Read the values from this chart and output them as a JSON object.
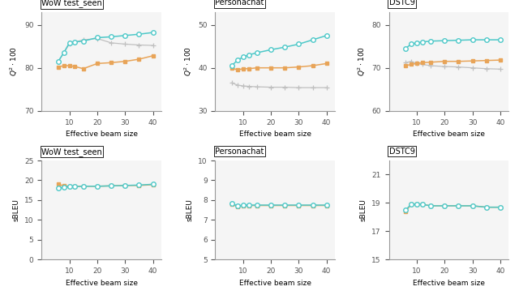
{
  "x": [
    6,
    8,
    10,
    12,
    15,
    20,
    25,
    30,
    35,
    40
  ],
  "titles_row1": [
    "WoW test_seen",
    "Personachat",
    "DSTC9"
  ],
  "titles_row2": [
    "WoW test_seen",
    "Personachat",
    "DSTC9"
  ],
  "ylabel_row1": "$Q^2 \\cdot 100$",
  "ylabel_row2": "sBLEU",
  "xlabel": "Effective beam size",
  "color_teal": "#4dc8c8",
  "color_orange": "#e8a458",
  "color_gray": "#c0c0c0",
  "row1": {
    "WoW": {
      "teal": [
        81.5,
        83.5,
        85.8,
        86.0,
        86.2,
        87.0,
        87.2,
        87.5,
        87.8,
        88.2
      ],
      "orange": [
        80.2,
        80.5,
        80.5,
        80.3,
        79.8,
        81.0,
        81.2,
        81.5,
        82.0,
        82.8
      ],
      "gray": [
        81.5,
        83.5,
        85.5,
        86.0,
        86.5,
        86.8,
        85.8,
        85.5,
        85.3,
        85.2
      ],
      "ylim": [
        70,
        93
      ],
      "yticks": [
        70,
        80,
        90
      ]
    },
    "Personachat": {
      "teal": [
        40.5,
        41.8,
        42.5,
        43.0,
        43.5,
        44.2,
        44.8,
        45.5,
        46.5,
        47.5
      ],
      "orange": [
        40.0,
        39.5,
        39.8,
        39.8,
        40.0,
        40.0,
        40.0,
        40.2,
        40.5,
        41.0
      ],
      "gray": [
        36.5,
        36.0,
        35.8,
        35.7,
        35.6,
        35.5,
        35.5,
        35.4,
        35.4,
        35.4
      ],
      "ylim": [
        30,
        53
      ],
      "yticks": [
        30,
        40,
        50
      ]
    },
    "DSTC9": {
      "teal": [
        74.5,
        75.5,
        75.8,
        76.0,
        76.2,
        76.3,
        76.4,
        76.5,
        76.5,
        76.5
      ],
      "orange": [
        70.5,
        70.8,
        71.0,
        71.2,
        71.3,
        71.5,
        71.5,
        71.6,
        71.7,
        71.8
      ],
      "gray": [
        71.2,
        71.5,
        71.0,
        70.8,
        70.5,
        70.3,
        70.2,
        70.0,
        69.8,
        69.7
      ],
      "ylim": [
        60,
        83
      ],
      "yticks": [
        60,
        70,
        80
      ]
    }
  },
  "row2": {
    "WoW": {
      "teal": [
        18.0,
        18.3,
        18.4,
        18.4,
        18.5,
        18.5,
        18.6,
        18.7,
        18.8,
        19.0
      ],
      "orange": [
        19.0,
        18.6,
        18.5,
        18.5,
        18.5,
        18.5,
        18.6,
        18.7,
        18.7,
        18.9
      ],
      "ylim": [
        0,
        25
      ],
      "yticks": [
        0,
        5,
        10,
        15,
        20,
        25
      ]
    },
    "Personachat": {
      "teal": [
        7.85,
        7.7,
        7.75,
        7.75,
        7.75,
        7.75,
        7.75,
        7.75,
        7.75,
        7.75
      ],
      "orange": [
        7.8,
        7.68,
        7.73,
        7.73,
        7.73,
        7.73,
        7.73,
        7.73,
        7.73,
        7.73
      ],
      "ylim": [
        5,
        10
      ],
      "yticks": [
        5,
        6,
        7,
        8,
        9,
        10
      ]
    },
    "DSTC9": {
      "teal": [
        18.5,
        18.9,
        18.9,
        18.9,
        18.8,
        18.8,
        18.8,
        18.8,
        18.7,
        18.7
      ],
      "orange": [
        18.4,
        18.9,
        18.9,
        18.9,
        18.8,
        18.8,
        18.8,
        18.8,
        18.7,
        18.7
      ],
      "ylim": [
        15,
        22
      ],
      "yticks": [
        15,
        17,
        19,
        21
      ]
    }
  }
}
